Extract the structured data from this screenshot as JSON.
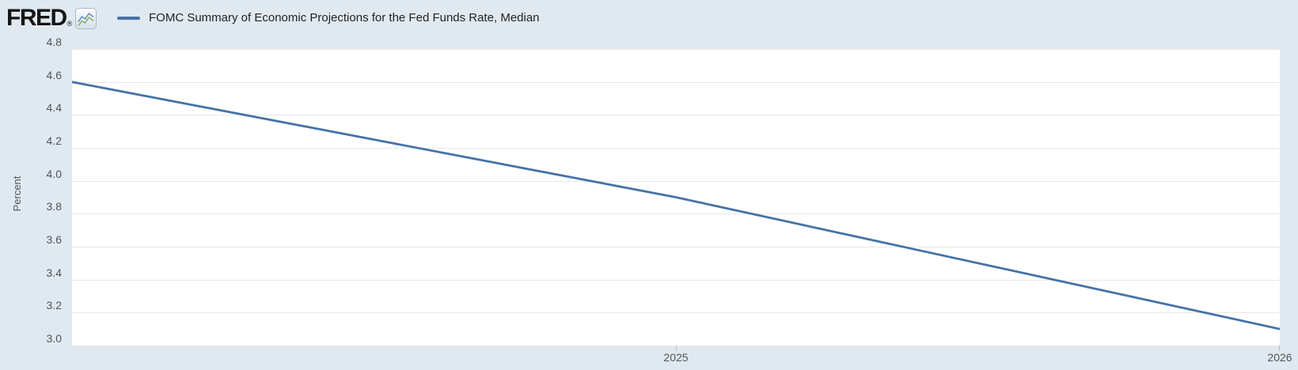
{
  "colors": {
    "background": "#e1e9f0",
    "plot_background": "#ffffff",
    "series_line": "#4572a7",
    "gridline": "#e8e8e8",
    "axis_label": "#4f5459",
    "title_text": "#222222",
    "logo_text": "#161616",
    "tick": "#b3bcc6"
  },
  "header": {
    "logo": {
      "text": "FRED",
      "registered_mark": "®",
      "icon": "fred-sparkline-icon"
    },
    "legend": {
      "marker": "line-dash",
      "label": "FOMC Summary of Economic Projections for the Fed Funds Rate, Median"
    }
  },
  "chart_data": {
    "type": "line",
    "title": "FOMC Summary of Economic Projections for the Fed Funds Rate, Median",
    "xlabel": "",
    "ylabel": "Percent",
    "xlim": [
      2024,
      2026
    ],
    "ylim": [
      3.0,
      4.8
    ],
    "grid": "horizontal",
    "legend_position": "top-left",
    "xticks": [
      2025,
      2026
    ],
    "xtick_labels": [
      "2025",
      "2026"
    ],
    "yticks": [
      4.8,
      4.6,
      4.4,
      4.2,
      4.0,
      3.8,
      3.6,
      3.4,
      3.2,
      3.0
    ],
    "ytick_labels": [
      "4.8",
      "4.6",
      "4.4",
      "4.2",
      "4.0",
      "3.8",
      "3.6",
      "3.4",
      "3.2",
      "3.0"
    ],
    "series": [
      {
        "name": "FOMC Summary of Economic Projections for the Fed Funds Rate, Median",
        "color": "#4572a7",
        "x": [
          2024,
          2025,
          2026
        ],
        "values": [
          4.6,
          3.9,
          3.1
        ]
      }
    ]
  }
}
